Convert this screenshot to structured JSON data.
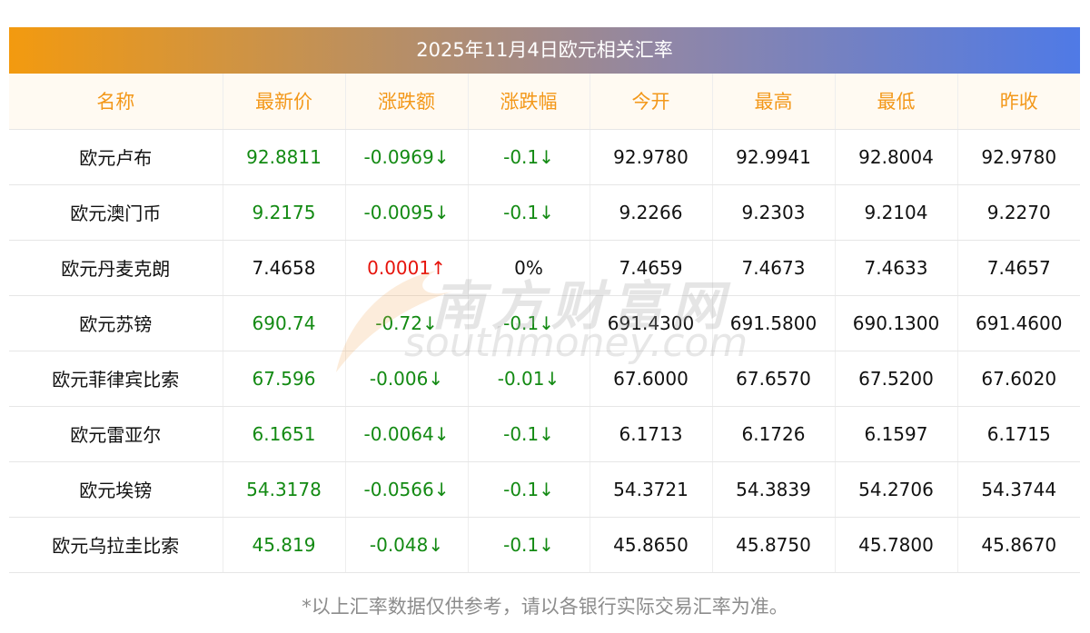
{
  "title": "2025年11月4日欧元相关汇率",
  "columns": [
    "名称",
    "最新价",
    "涨跌额",
    "涨跌幅",
    "今开",
    "最高",
    "最低",
    "昨收"
  ],
  "rows": [
    {
      "name": "欧元卢布",
      "latest": "92.8811",
      "change": "-0.0969↓",
      "pct": "-0.1↓",
      "open": "92.9780",
      "high": "92.9941",
      "low": "92.8004",
      "prev": "92.9780",
      "dir": "down"
    },
    {
      "name": "欧元澳门币",
      "latest": "9.2175",
      "change": "-0.0095↓",
      "pct": "-0.1↓",
      "open": "9.2266",
      "high": "9.2303",
      "low": "9.2104",
      "prev": "9.2270",
      "dir": "down"
    },
    {
      "name": "欧元丹麦克朗",
      "latest": "7.4658",
      "change": "0.0001↑",
      "pct": "0%",
      "open": "7.4659",
      "high": "7.4673",
      "low": "7.4633",
      "prev": "7.4657",
      "dir": "up"
    },
    {
      "name": "欧元苏镑",
      "latest": "690.74",
      "change": "-0.72↓",
      "pct": "-0.1↓",
      "open": "691.4300",
      "high": "691.5800",
      "low": "690.1300",
      "prev": "691.4600",
      "dir": "down"
    },
    {
      "name": "欧元菲律宾比索",
      "latest": "67.596",
      "change": "-0.006↓",
      "pct": "-0.01↓",
      "open": "67.6000",
      "high": "67.6570",
      "low": "67.5200",
      "prev": "67.6020",
      "dir": "down"
    },
    {
      "name": "欧元雷亚尔",
      "latest": "6.1651",
      "change": "-0.0064↓",
      "pct": "-0.1↓",
      "open": "6.1713",
      "high": "6.1726",
      "low": "6.1597",
      "prev": "6.1715",
      "dir": "down"
    },
    {
      "name": "欧元埃镑",
      "latest": "54.3178",
      "change": "-0.0566↓",
      "pct": "-0.1↓",
      "open": "54.3721",
      "high": "54.3839",
      "low": "54.2706",
      "prev": "54.3744",
      "dir": "down"
    },
    {
      "name": "欧元乌拉圭比索",
      "latest": "45.819",
      "change": "-0.048↓",
      "pct": "-0.1↓",
      "open": "45.8650",
      "high": "45.8750",
      "low": "45.7800",
      "prev": "45.8670",
      "dir": "down"
    }
  ],
  "watermark": {
    "cn": "南方财富网",
    "en": "southmoney.com"
  },
  "footnote": "*以上汇率数据仅供参考，请以各银行实际交易汇率为准。",
  "colors": {
    "header_text": "#f3981a",
    "down": "#138a13",
    "up": "#e6140c",
    "footnote": "#8c8c8c"
  }
}
